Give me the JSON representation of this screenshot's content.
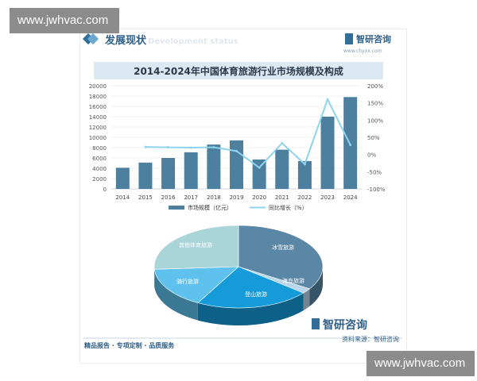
{
  "watermark": {
    "top": "www.jwhvac.com",
    "bottom": "www.jwhvac.com"
  },
  "header": {
    "title": "发展现状",
    "subtitle": "Development status",
    "logo": "智研咨询",
    "url": "www.chyxx.com"
  },
  "colors": {
    "bar": "#4d7f9f",
    "line": "#8fd3ee",
    "title_bg": "#dce8f2",
    "footer": "#2f5f86"
  },
  "chart_data": [
    {
      "type": "bar",
      "title": "2014-2024年中国体育旅游行业市场规模及构成",
      "categories": [
        "2014",
        "2015",
        "2016",
        "2017",
        "2018",
        "2019",
        "2020",
        "2021",
        "2022",
        "2023",
        "2024"
      ],
      "series": [
        {
          "name": "市场规模（亿元）",
          "type": "bar",
          "axis": "left",
          "values": [
            4100,
            5100,
            6000,
            7100,
            8600,
            9400,
            5700,
            7600,
            5400,
            14000,
            17800
          ]
        },
        {
          "name": "同比增长（%）",
          "type": "line",
          "axis": "right",
          "values": [
            null,
            22,
            21,
            20,
            21,
            10,
            -38,
            33,
            -28,
            160,
            28
          ]
        }
      ],
      "ylim_left": [
        0,
        20000
      ],
      "yticks_left": [
        "0",
        "2000",
        "4000",
        "6000",
        "8000",
        "10000",
        "12000",
        "14000",
        "16000",
        "18000",
        "20000"
      ],
      "ylim_right": [
        -100,
        200
      ],
      "yticks_right": [
        "-100%",
        "-50%",
        "0%",
        "50%",
        "100%",
        "150%",
        "200%"
      ],
      "legend": "bottom",
      "grid": true
    },
    {
      "type": "pie",
      "slices": [
        {
          "label": "冰雪旅游",
          "value": 34,
          "color": "#5b87a6"
        },
        {
          "label": "海岛旅游",
          "value": 2,
          "color": "#b9d6ea"
        },
        {
          "label": "登山旅游",
          "value": 22,
          "color": "#159bd9"
        },
        {
          "label": "骑行旅游",
          "value": 16,
          "color": "#5fc2ee"
        },
        {
          "label": "其他体育旅游",
          "value": 26,
          "color": "#a9d5d9"
        }
      ]
    }
  ],
  "footer": {
    "left": "精品报告 · 专项定制 · 品质服务",
    "right": "资料来源：智研咨询",
    "logo": "智研咨询"
  }
}
